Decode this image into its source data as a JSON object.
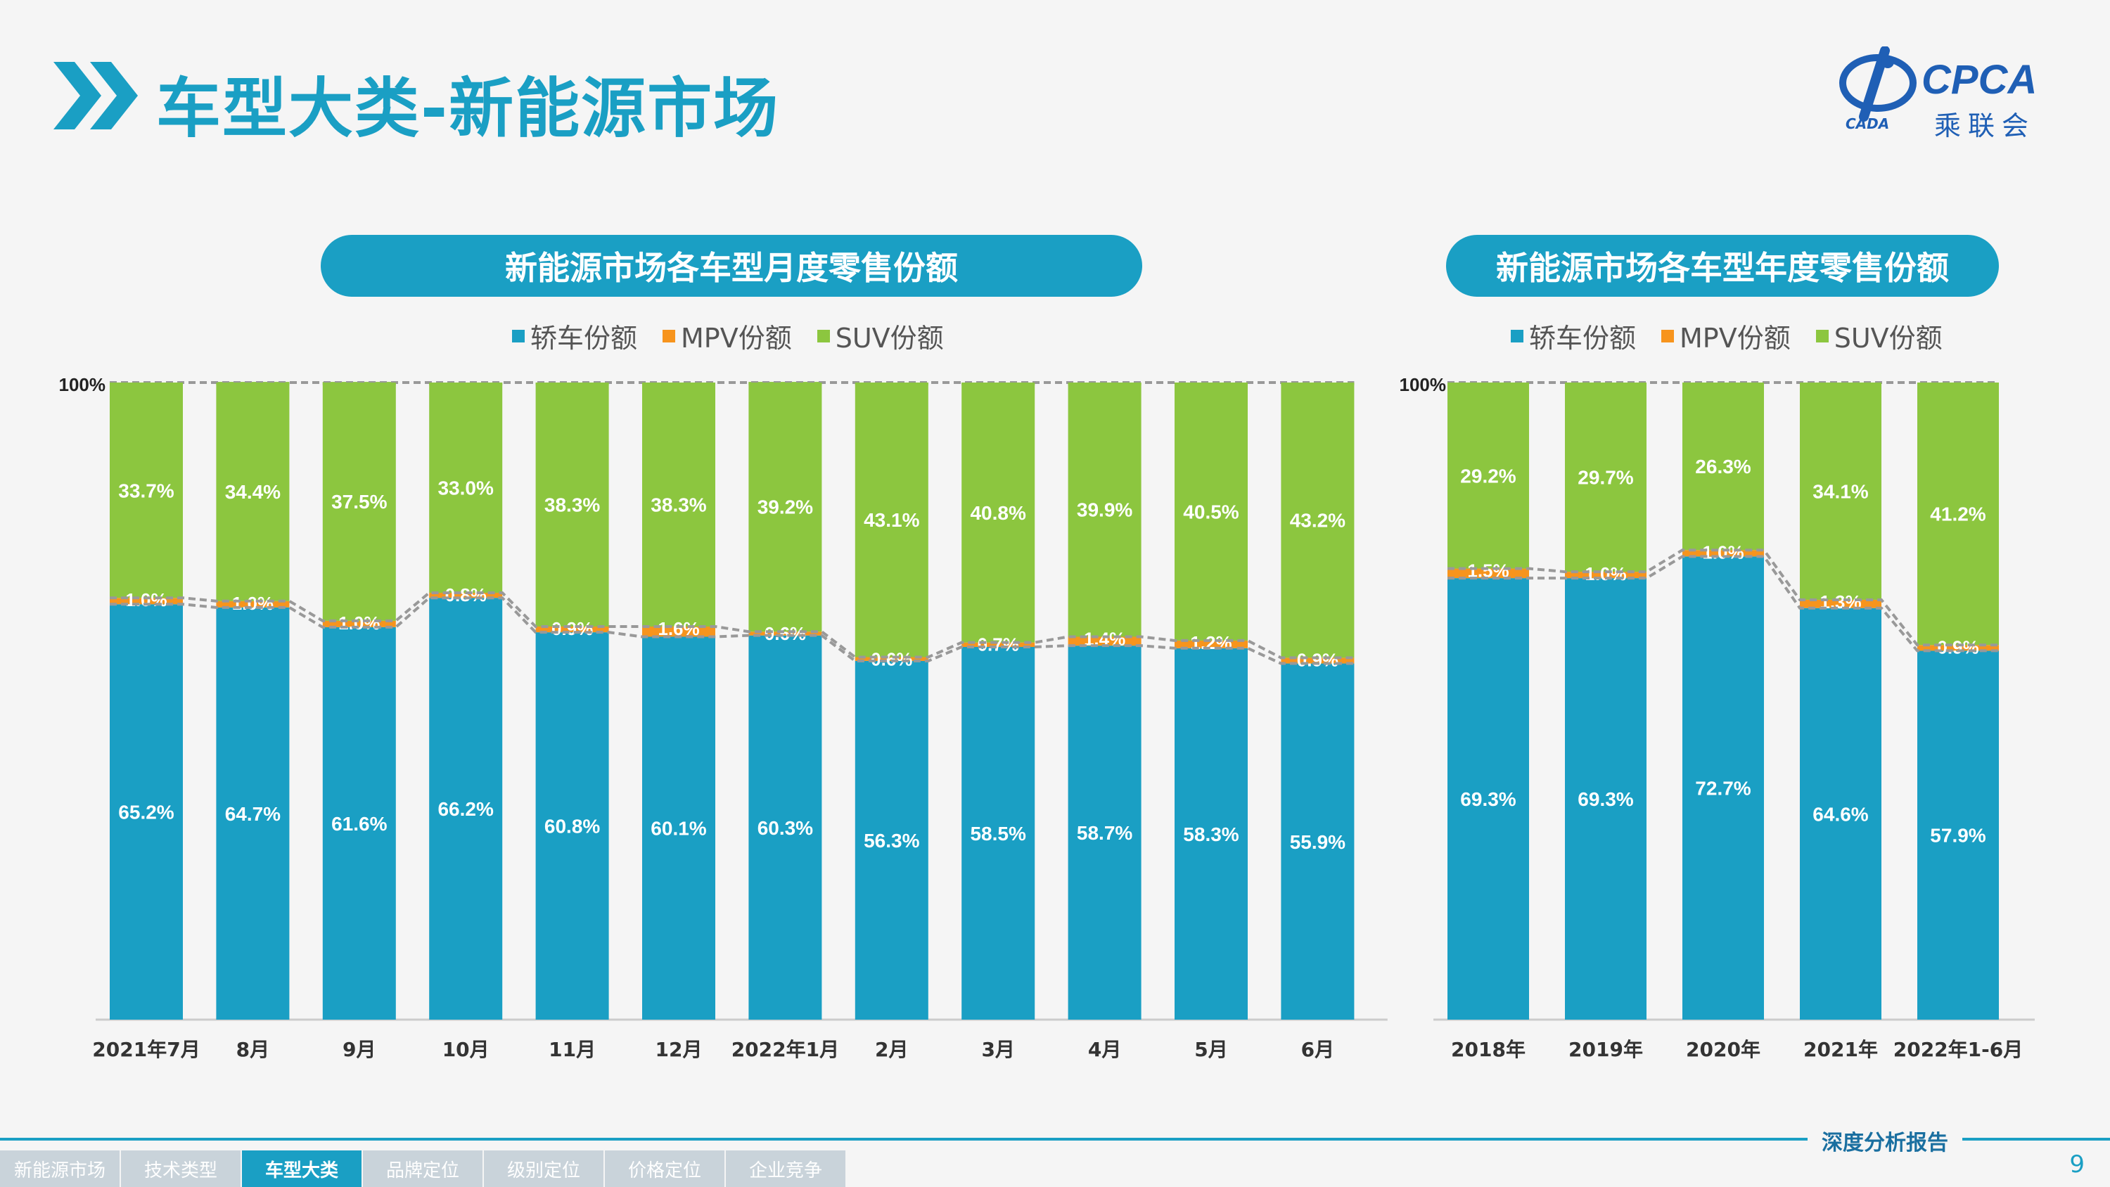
{
  "page_title": "车型大类-新能源市场",
  "logo": {
    "text": "CPCA",
    "sub": "乘联会",
    "small": "CADA"
  },
  "left_chart_title": "新能源市场各车型月度零售份额",
  "right_chart_title": "新能源市场各车型年度零售份额",
  "legend": [
    {
      "label": "轿车份额",
      "color": "#1a9fc4"
    },
    {
      "label": "MPV份额",
      "color": "#f7941d"
    },
    {
      "label": "SUV份额",
      "color": "#8cc63f"
    }
  ],
  "colors": {
    "sedan": "#1a9fc4",
    "mpv": "#f7941d",
    "suv": "#8cc63f",
    "accent": "#1a9fc4"
  },
  "chart_data": [
    {
      "type": "bar",
      "stacked": true,
      "title": "新能源市场各车型月度零售份额",
      "categories": [
        "2021年7月",
        "8月",
        "9月",
        "10月",
        "11月",
        "12月",
        "2022年1月",
        "2月",
        "3月",
        "4月",
        "5月",
        "6月"
      ],
      "series": [
        {
          "name": "轿车份额",
          "values": [
            65.2,
            64.7,
            61.6,
            66.2,
            60.8,
            60.1,
            60.3,
            56.3,
            58.5,
            58.7,
            58.3,
            55.9
          ],
          "labels": [
            "65.2%",
            "64.7%",
            "61.6%",
            "66.2%",
            "60.8%",
            "60.1%",
            "60.3%",
            "56.3%",
            "58.5%",
            "58.7%",
            "58.3%",
            "55.9%"
          ]
        },
        {
          "name": "MPV份额",
          "values": [
            1.0,
            1.0,
            1.0,
            0.8,
            0.9,
            1.6,
            0.6,
            0.6,
            0.7,
            1.4,
            1.2,
            0.9
          ],
          "labels": [
            "1.0%",
            "1.0%",
            "1.0%",
            "0.8%",
            "0.9%",
            "1.6%",
            "0.6%",
            "0.6%",
            "0.7%",
            "1.4%",
            "1.2%",
            "0.9%"
          ]
        },
        {
          "name": "SUV份额",
          "values": [
            33.7,
            34.4,
            37.5,
            33.0,
            38.3,
            38.3,
            39.2,
            43.1,
            40.8,
            39.9,
            40.5,
            43.2
          ],
          "labels": [
            "33.7%",
            "34.4%",
            "37.5%",
            "33.0%",
            "38.3%",
            "38.3%",
            "39.2%",
            "43.1%",
            "40.8%",
            "39.9%",
            "40.5%",
            "43.2%"
          ]
        }
      ],
      "ymax_label": "100%",
      "ylim": [
        0,
        100
      ]
    },
    {
      "type": "bar",
      "stacked": true,
      "title": "新能源市场各车型年度零售份额",
      "categories": [
        "2018年",
        "2019年",
        "2020年",
        "2021年",
        "2022年1-6月"
      ],
      "series": [
        {
          "name": "轿车份额",
          "values": [
            69.3,
            69.3,
            72.7,
            64.6,
            57.9
          ],
          "labels": [
            "69.3%",
            "69.3%",
            "72.7%",
            "64.6%",
            "57.9%"
          ]
        },
        {
          "name": "MPV份额",
          "values": [
            1.5,
            1.0,
            1.0,
            1.3,
            0.9
          ],
          "labels": [
            "1.5%",
            "1.0%",
            "1.0%",
            "1.3%",
            "0.9%"
          ]
        },
        {
          "name": "SUV份额",
          "values": [
            29.2,
            29.7,
            26.3,
            34.1,
            41.2
          ],
          "labels": [
            "29.2%",
            "29.7%",
            "26.3%",
            "34.1%",
            "41.2%"
          ]
        }
      ],
      "ymax_label": "100%",
      "ylim": [
        0,
        100
      ]
    }
  ],
  "footer": {
    "tag": "深度分析报告",
    "nav": [
      "新能源市场",
      "技术类型",
      "车型大类",
      "品牌定位",
      "级别定位",
      "价格定位",
      "企业竞争"
    ],
    "active": 2,
    "page_number": "9"
  }
}
